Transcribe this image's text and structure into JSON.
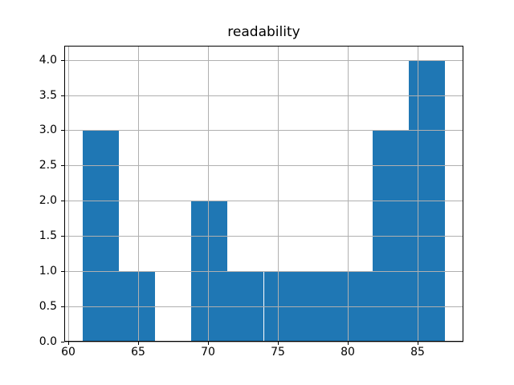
{
  "chart_data": {
    "type": "bar",
    "subtype": "histogram",
    "title": "readability",
    "xlabel": "",
    "ylabel": "",
    "bin_edges": [
      61.0,
      63.6,
      66.2,
      68.8,
      71.4,
      74.0,
      76.6,
      79.2,
      81.8,
      84.4,
      87.0
    ],
    "counts": [
      3,
      1,
      0,
      2,
      1,
      1,
      1,
      1,
      3,
      4
    ],
    "xticks": [
      60,
      65,
      70,
      75,
      80,
      85
    ],
    "xtick_labels": [
      "60",
      "65",
      "70",
      "75",
      "80",
      "85"
    ],
    "yticks": [
      0.0,
      0.5,
      1.0,
      1.5,
      2.0,
      2.5,
      3.0,
      3.5,
      4.0
    ],
    "ytick_labels": [
      "0.0",
      "0.5",
      "1.0",
      "1.5",
      "2.0",
      "2.5",
      "3.0",
      "3.5",
      "4.0"
    ],
    "xlim": [
      59.7,
      88.3
    ],
    "ylim": [
      0,
      4.2
    ],
    "grid": true,
    "legend": false,
    "colors": {
      "bar": "#1f77b4",
      "grid": "#b0b0b0",
      "spine": "#000000",
      "background": "#ffffff",
      "text": "#000000"
    }
  }
}
